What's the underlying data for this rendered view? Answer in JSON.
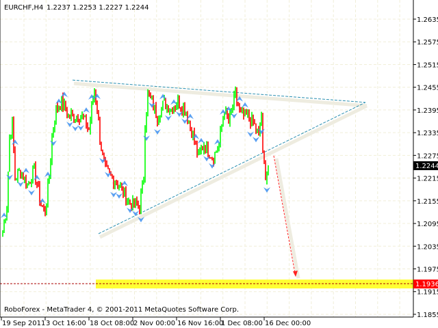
{
  "header": {
    "symbol": "EURCHF,H4",
    "ohlc": "1.2237 1.2253 1.2227 1.2244"
  },
  "footer": {
    "copyright": "RoboForex - MetaTrader 4, © 2001-2011 MetaQuotes Software Corp."
  },
  "colors": {
    "bull": "#00ff00",
    "bear": "#ff0000",
    "grid": "#f0eed8",
    "trendline": "#2a8fb0",
    "fractal": "#3d8ff0",
    "target_band": "#ffff33",
    "target_arrow": "#ff2020",
    "current_price_bg": "#000000",
    "target_price_bg": "#ff0000"
  },
  "chart_data": {
    "type": "candlestick",
    "symbol": "EURCHF",
    "timeframe": "H4",
    "ylim": [
      1.1855,
      1.2665
    ],
    "y_ticks": [
      "1.2635",
      "1.2575",
      "1.2515",
      "1.2455",
      "1.2395",
      "1.2335",
      "1.2275",
      "1.2215",
      "1.2155",
      "1.2095",
      "1.2035",
      "1.1975",
      "1.1915",
      "1.1855"
    ],
    "x_ticks": [
      {
        "label": "19 Sep 2011",
        "bar": 0
      },
      {
        "label": "3 Oct 16:00",
        "bar": 32
      },
      {
        "label": "18 Oct 08:00",
        "bar": 64
      },
      {
        "label": "2 Nov 00:00",
        "bar": 96
      },
      {
        "label": "16 Nov 16:00",
        "bar": 128
      },
      {
        "label": "1 Dec 08:00",
        "bar": 160
      },
      {
        "label": "16 Dec 00:00",
        "bar": 192
      }
    ],
    "grid": true,
    "close_path": [
      [
        0,
        1.2072
      ],
      [
        3,
        1.2144
      ],
      [
        5,
        1.2324
      ],
      [
        7,
        1.2361
      ],
      [
        9,
        1.2216
      ],
      [
        13,
        1.2234
      ],
      [
        18,
        1.2198
      ],
      [
        23,
        1.2234
      ],
      [
        28,
        1.2144
      ],
      [
        31,
        1.2126
      ],
      [
        34,
        1.2216
      ],
      [
        36,
        1.2324
      ],
      [
        39,
        1.2397
      ],
      [
        43,
        1.2415
      ],
      [
        48,
        1.2379
      ],
      [
        53,
        1.2379
      ],
      [
        58,
        1.2379
      ],
      [
        63,
        1.2342
      ],
      [
        67,
        1.2451
      ],
      [
        69,
        1.2397
      ],
      [
        71,
        1.2324
      ],
      [
        73,
        1.227
      ],
      [
        75,
        1.2234
      ],
      [
        80,
        1.2216
      ],
      [
        85,
        1.2198
      ],
      [
        90,
        1.2162
      ],
      [
        95,
        1.2144
      ],
      [
        100,
        1.2144
      ],
      [
        103,
        1.2216
      ],
      [
        104,
        1.2361
      ],
      [
        106,
        1.2433
      ],
      [
        109,
        1.2415
      ],
      [
        113,
        1.2379
      ],
      [
        118,
        1.2415
      ],
      [
        123,
        1.2397
      ],
      [
        128,
        1.2415
      ],
      [
        133,
        1.2397
      ],
      [
        138,
        1.2342
      ],
      [
        143,
        1.227
      ],
      [
        147,
        1.2306
      ],
      [
        150,
        1.2288
      ],
      [
        154,
        1.227
      ],
      [
        158,
        1.2306
      ],
      [
        162,
        1.2397
      ],
      [
        165,
        1.2361
      ],
      [
        170,
        1.2433
      ],
      [
        174,
        1.2379
      ],
      [
        178,
        1.2379
      ],
      [
        183,
        1.2361
      ],
      [
        187,
        1.2324
      ],
      [
        189,
        1.2388
      ],
      [
        190,
        1.227
      ],
      [
        192,
        1.2225
      ],
      [
        194,
        1.2244
      ]
    ],
    "last_price": "1.2244",
    "trendlines": [
      {
        "name": "upper",
        "from": [
          51,
          1.2474
        ],
        "to": [
          265,
          1.2415
        ]
      },
      {
        "name": "lower",
        "from": [
          70,
          1.2068
        ],
        "to": [
          265,
          1.2415
        ]
      }
    ],
    "forecast_arrow": {
      "from": [
        198,
        1.2274
      ],
      "to": [
        214,
        1.1954
      ]
    },
    "target_level": {
      "price": "1.1936",
      "value": 1.1936
    }
  }
}
